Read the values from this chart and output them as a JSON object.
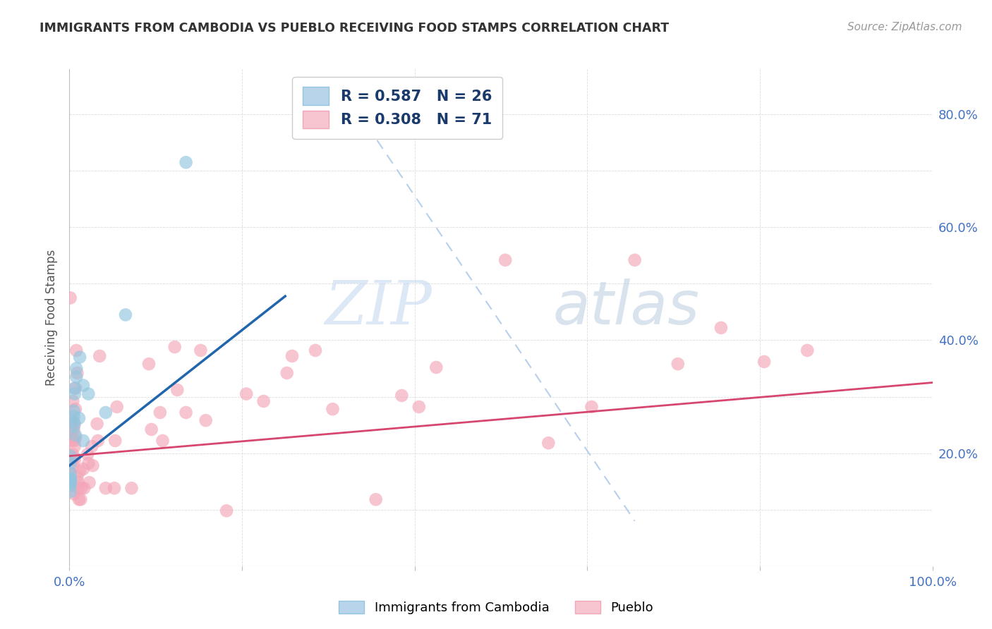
{
  "title": "IMMIGRANTS FROM CAMBODIA VS PUEBLO RECEIVING FOOD STAMPS CORRELATION CHART",
  "source": "Source: ZipAtlas.com",
  "ylabel": "Receiving Food Stamps",
  "xlim": [
    0,
    1.0
  ],
  "ylim": [
    0,
    0.88
  ],
  "xtick_positions": [
    0.0,
    0.2,
    0.4,
    0.6,
    0.8,
    1.0
  ],
  "xtick_labels": [
    "0.0%",
    "",
    "",
    "",
    "",
    "100.0%"
  ],
  "ytick_positions": [
    0.0,
    0.2,
    0.4,
    0.6,
    0.8
  ],
  "ytick_labels_right": [
    "",
    "20.0%",
    "40.0%",
    "60.0%",
    "80.0%"
  ],
  "watermark_zip": "ZIP",
  "watermark_atlas": "atlas",
  "cambodia_color": "#92c5de",
  "pueblo_color": "#f4a6b8",
  "cambodia_scatter": [
    [
      0.001,
      0.155
    ],
    [
      0.001,
      0.155
    ],
    [
      0.001,
      0.148
    ],
    [
      0.001,
      0.15
    ],
    [
      0.001,
      0.143
    ],
    [
      0.001,
      0.132
    ],
    [
      0.001,
      0.165
    ],
    [
      0.001,
      0.182
    ],
    [
      0.001,
      0.195
    ],
    [
      0.005,
      0.275
    ],
    [
      0.006,
      0.305
    ],
    [
      0.006,
      0.315
    ],
    [
      0.005,
      0.265
    ],
    [
      0.005,
      0.255
    ],
    [
      0.005,
      0.248
    ],
    [
      0.008,
      0.335
    ],
    [
      0.008,
      0.35
    ],
    [
      0.007,
      0.232
    ],
    [
      0.012,
      0.37
    ],
    [
      0.011,
      0.262
    ],
    [
      0.016,
      0.32
    ],
    [
      0.016,
      0.222
    ],
    [
      0.022,
      0.305
    ],
    [
      0.042,
      0.272
    ],
    [
      0.065,
      0.445
    ],
    [
      0.135,
      0.715
    ]
  ],
  "pueblo_scatter": [
    [
      0.001,
      0.475
    ],
    [
      0.001,
      0.165
    ],
    [
      0.003,
      0.258
    ],
    [
      0.003,
      0.242
    ],
    [
      0.003,
      0.222
    ],
    [
      0.004,
      0.292
    ],
    [
      0.004,
      0.198
    ],
    [
      0.004,
      0.178
    ],
    [
      0.005,
      0.242
    ],
    [
      0.005,
      0.192
    ],
    [
      0.005,
      0.128
    ],
    [
      0.006,
      0.222
    ],
    [
      0.006,
      0.252
    ],
    [
      0.006,
      0.212
    ],
    [
      0.006,
      0.188
    ],
    [
      0.007,
      0.315
    ],
    [
      0.007,
      0.278
    ],
    [
      0.007,
      0.228
    ],
    [
      0.008,
      0.382
    ],
    [
      0.009,
      0.342
    ],
    [
      0.009,
      0.158
    ],
    [
      0.01,
      0.138
    ],
    [
      0.01,
      0.148
    ],
    [
      0.011,
      0.118
    ],
    [
      0.012,
      0.168
    ],
    [
      0.013,
      0.118
    ],
    [
      0.014,
      0.138
    ],
    [
      0.016,
      0.172
    ],
    [
      0.017,
      0.138
    ],
    [
      0.021,
      0.198
    ],
    [
      0.022,
      0.182
    ],
    [
      0.023,
      0.148
    ],
    [
      0.026,
      0.212
    ],
    [
      0.027,
      0.178
    ],
    [
      0.032,
      0.252
    ],
    [
      0.033,
      0.222
    ],
    [
      0.035,
      0.372
    ],
    [
      0.042,
      0.138
    ],
    [
      0.052,
      0.138
    ],
    [
      0.053,
      0.222
    ],
    [
      0.055,
      0.282
    ],
    [
      0.072,
      0.138
    ],
    [
      0.092,
      0.358
    ],
    [
      0.095,
      0.242
    ],
    [
      0.105,
      0.272
    ],
    [
      0.108,
      0.222
    ],
    [
      0.122,
      0.388
    ],
    [
      0.125,
      0.312
    ],
    [
      0.135,
      0.272
    ],
    [
      0.152,
      0.382
    ],
    [
      0.158,
      0.258
    ],
    [
      0.182,
      0.098
    ],
    [
      0.205,
      0.305
    ],
    [
      0.225,
      0.292
    ],
    [
      0.252,
      0.342
    ],
    [
      0.258,
      0.372
    ],
    [
      0.285,
      0.382
    ],
    [
      0.305,
      0.278
    ],
    [
      0.355,
      0.118
    ],
    [
      0.385,
      0.302
    ],
    [
      0.405,
      0.282
    ],
    [
      0.425,
      0.352
    ],
    [
      0.505,
      0.542
    ],
    [
      0.555,
      0.218
    ],
    [
      0.605,
      0.282
    ],
    [
      0.655,
      0.542
    ],
    [
      0.705,
      0.358
    ],
    [
      0.755,
      0.422
    ],
    [
      0.805,
      0.362
    ],
    [
      0.855,
      0.382
    ]
  ],
  "cambodia_line_x": [
    0.0,
    0.25
  ],
  "cambodia_line_y": [
    0.178,
    0.478
  ],
  "pueblo_line_x": [
    0.0,
    1.0
  ],
  "pueblo_line_y": [
    0.195,
    0.325
  ],
  "diagonal_line_x": [
    0.345,
    0.655
  ],
  "diagonal_line_y": [
    0.78,
    0.08
  ],
  "grid_color": "#dddddd",
  "title_color": "#333333",
  "source_color": "#999999",
  "axis_label_color": "#4472c4",
  "ylabel_color": "#555555",
  "blue_reg_color": "#2166ac",
  "pink_reg_color": "#d6466e",
  "diag_color": "#aac8e8"
}
